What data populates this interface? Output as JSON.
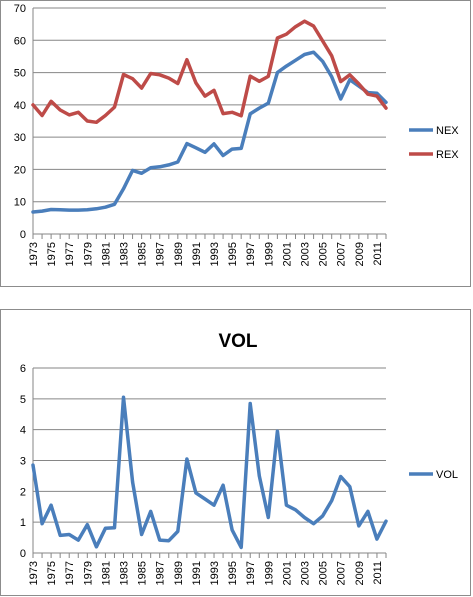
{
  "chart_data": [
    {
      "type": "line",
      "title": "",
      "xlabel": "",
      "ylabel": "",
      "ylim": [
        0,
        70
      ],
      "yticks": [
        0,
        10,
        20,
        30,
        40,
        50,
        60,
        70
      ],
      "grid": true,
      "legend": "right",
      "x": [
        1973,
        1974,
        1975,
        1976,
        1977,
        1978,
        1979,
        1980,
        1981,
        1982,
        1983,
        1984,
        1985,
        1986,
        1987,
        1988,
        1989,
        1990,
        1991,
        1992,
        1993,
        1994,
        1995,
        1996,
        1997,
        1998,
        1999,
        2000,
        2001,
        2002,
        2003,
        2004,
        2005,
        2006,
        2007,
        2008,
        2009,
        2010,
        2011,
        2012
      ],
      "x_tick_labels": [
        "1973",
        "1975",
        "1977",
        "1979",
        "1981",
        "1983",
        "1985",
        "1987",
        "1989",
        "1991",
        "1993",
        "1995",
        "1997",
        "1999",
        "2001",
        "2003",
        "2005",
        "2007",
        "2009",
        "2011"
      ],
      "series": [
        {
          "name": "NEX",
          "color": "#4a7ebb",
          "values": [
            6.8,
            7.1,
            7.6,
            7.5,
            7.4,
            7.4,
            7.5,
            7.8,
            8.3,
            9.2,
            14.0,
            19.7,
            18.8,
            20.5,
            20.8,
            21.4,
            22.3,
            28.0,
            26.7,
            25.3,
            27.9,
            24.3,
            26.3,
            26.5,
            37.2,
            39.0,
            40.5,
            50.0,
            52.0,
            53.8,
            55.6,
            56.3,
            53.5,
            48.7,
            41.8,
            47.8,
            45.8,
            43.8,
            43.6,
            40.8
          ]
        },
        {
          "name": "REX",
          "color": "#be4b48",
          "values": [
            40.0,
            36.7,
            41.1,
            38.4,
            36.9,
            37.7,
            35.0,
            34.6,
            36.7,
            39.3,
            49.4,
            48.1,
            45.2,
            49.7,
            49.3,
            48.3,
            46.6,
            54.0,
            46.8,
            42.7,
            44.5,
            37.3,
            37.7,
            36.6,
            48.9,
            47.3,
            48.8,
            60.7,
            61.9,
            64.2,
            65.9,
            64.4,
            59.8,
            55.2,
            47.2,
            49.3,
            46.5,
            43.3,
            42.7,
            39.0
          ]
        }
      ]
    },
    {
      "type": "line",
      "title": "VOL",
      "xlabel": "",
      "ylabel": "",
      "ylim": [
        0,
        6
      ],
      "yticks": [
        0,
        1,
        2,
        3,
        4,
        5,
        6
      ],
      "grid": true,
      "legend": "right",
      "x": [
        1973,
        1974,
        1975,
        1976,
        1977,
        1978,
        1979,
        1980,
        1981,
        1982,
        1983,
        1984,
        1985,
        1986,
        1987,
        1988,
        1989,
        1990,
        1991,
        1992,
        1993,
        1994,
        1995,
        1996,
        1997,
        1998,
        1999,
        2000,
        2001,
        2002,
        2003,
        2004,
        2005,
        2006,
        2007,
        2008,
        2009,
        2010,
        2011,
        2012
      ],
      "x_tick_labels": [
        "1973",
        "1975",
        "1977",
        "1979",
        "1981",
        "1983",
        "1985",
        "1987",
        "1989",
        "1991",
        "1993",
        "1995",
        "1997",
        "1999",
        "2001",
        "2003",
        "2005",
        "2007",
        "2009",
        "2011"
      ],
      "series": [
        {
          "name": "VOL",
          "color": "#4a7ebb",
          "values": [
            2.85,
            0.95,
            1.55,
            0.57,
            0.6,
            0.42,
            0.92,
            0.2,
            0.8,
            0.82,
            5.05,
            2.3,
            0.6,
            1.35,
            0.42,
            0.4,
            0.7,
            3.05,
            1.95,
            1.75,
            1.55,
            2.2,
            0.75,
            0.18,
            4.85,
            2.5,
            1.15,
            3.95,
            1.55,
            1.4,
            1.15,
            0.95,
            1.2,
            1.7,
            2.48,
            2.15,
            0.88,
            1.35,
            0.45,
            1.03
          ]
        }
      ]
    }
  ]
}
